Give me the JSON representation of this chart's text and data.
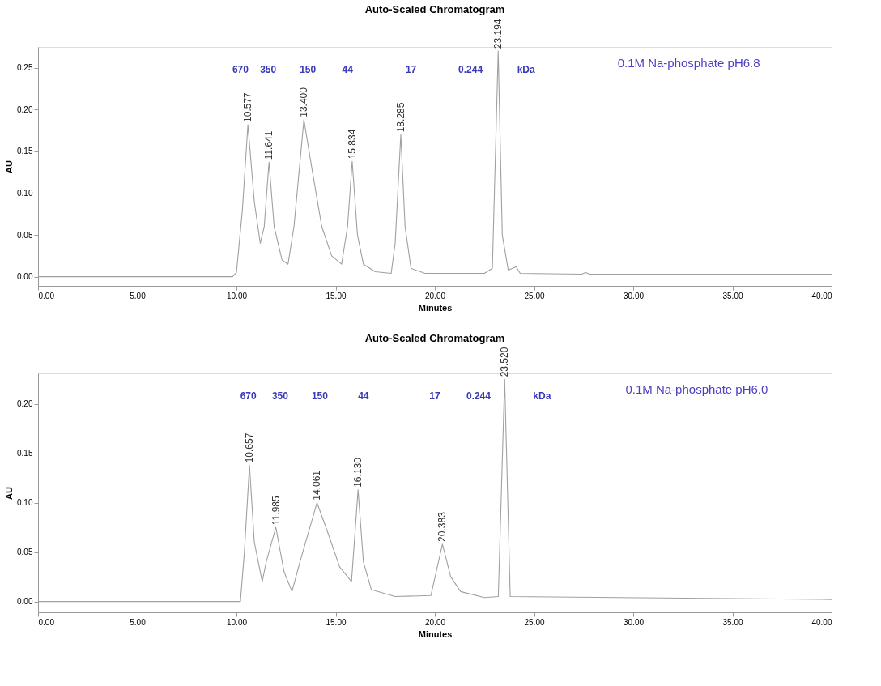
{
  "chart_data": [
    {
      "type": "line",
      "title": "Auto-Scaled Chromatogram",
      "xlabel": "Minutes",
      "ylabel": "AU",
      "xlim": [
        0,
        40
      ],
      "xticks": [
        {
          "value": 0,
          "label": "0.00"
        },
        {
          "value": 5,
          "label": "5.00"
        },
        {
          "value": 10,
          "label": "10.00"
        },
        {
          "value": 15,
          "label": "15.00"
        },
        {
          "value": 20,
          "label": "20.00"
        },
        {
          "value": 25,
          "label": "25.00"
        },
        {
          "value": 30,
          "label": "30.00"
        },
        {
          "value": 35,
          "label": "35.00"
        },
        {
          "value": 40,
          "label": "40.00"
        }
      ],
      "ylim": [
        -0.011,
        0.275
      ],
      "yticks": [
        {
          "value": 0,
          "label": "0.00"
        },
        {
          "value": 0.05,
          "label": "0.05"
        },
        {
          "value": 0.1,
          "label": "0.10"
        },
        {
          "value": 0.15,
          "label": "0.15"
        },
        {
          "value": 0.2,
          "label": "0.20"
        },
        {
          "value": 0.25,
          "label": "0.25"
        }
      ],
      "grid": false,
      "marker": "none",
      "line_style": "solid",
      "series": [
        {
          "color": "#a0a0a0",
          "x": [
            0,
            9.8,
            10.0,
            10.3,
            10.577,
            10.9,
            11.2,
            11.4,
            11.641,
            11.9,
            12.3,
            12.6,
            12.9,
            13.4,
            13.8,
            14.3,
            14.8,
            15.3,
            15.6,
            15.834,
            16.1,
            16.4,
            17.0,
            17.8,
            18.0,
            18.285,
            18.5,
            18.8,
            19.5,
            22.5,
            22.9,
            23.194,
            23.4,
            23.7,
            24.1,
            24.3,
            27.4,
            27.6,
            27.8,
            40
          ],
          "values": [
            0,
            0,
            0.005,
            0.08,
            0.182,
            0.09,
            0.04,
            0.06,
            0.137,
            0.06,
            0.02,
            0.015,
            0.06,
            0.188,
            0.13,
            0.06,
            0.025,
            0.015,
            0.06,
            0.138,
            0.05,
            0.015,
            0.006,
            0.004,
            0.04,
            0.17,
            0.06,
            0.01,
            0.004,
            0.004,
            0.01,
            0.27,
            0.05,
            0.008,
            0.012,
            0.004,
            0.003,
            0.005,
            0.003,
            0.003
          ]
        }
      ],
      "annotations": [
        {
          "text": "10.577",
          "x": 10.577,
          "y": 0.182
        },
        {
          "text": "11.641",
          "x": 11.641,
          "y": 0.137
        },
        {
          "text": "13.400",
          "x": 13.4,
          "y": 0.188
        },
        {
          "text": "15.834",
          "x": 15.834,
          "y": 0.138
        },
        {
          "text": "18.285",
          "x": 18.285,
          "y": 0.17
        },
        {
          "text": "23.194",
          "x": 23.194,
          "y": 0.27
        },
        "670",
        "350",
        "150",
        "44",
        "17",
        "0.244",
        "kDa",
        "0.1M Na-phosphate pH6.8"
      ]
    },
    {
      "type": "line",
      "title": "Auto-Scaled Chromatogram",
      "xlabel": "Minutes",
      "ylabel": "AU",
      "xlim": [
        0,
        40
      ],
      "xticks": [
        {
          "value": 0,
          "label": "0.00"
        },
        {
          "value": 5,
          "label": "5.00"
        },
        {
          "value": 10,
          "label": "10.00"
        },
        {
          "value": 15,
          "label": "15.00"
        },
        {
          "value": 20,
          "label": "20.00"
        },
        {
          "value": 25,
          "label": "25.00"
        },
        {
          "value": 30,
          "label": "30.00"
        },
        {
          "value": 35,
          "label": "35.00"
        },
        {
          "value": 40,
          "label": "40.00"
        }
      ],
      "ylim": [
        -0.011,
        0.231
      ],
      "yticks": [
        {
          "value": 0,
          "label": "0.00"
        },
        {
          "value": 0.05,
          "label": "0.05"
        },
        {
          "value": 0.1,
          "label": "0.10"
        },
        {
          "value": 0.15,
          "label": "0.15"
        },
        {
          "value": 0.2,
          "label": "0.20"
        }
      ],
      "grid": false,
      "marker": "none",
      "line_style": "solid",
      "series": [
        {
          "color": "#a0a0a0",
          "x": [
            0,
            10.2,
            10.4,
            10.657,
            10.9,
            11.3,
            11.5,
            11.985,
            12.4,
            12.8,
            13.2,
            14.061,
            14.6,
            15.2,
            15.8,
            16.13,
            16.4,
            16.8,
            18.0,
            19.8,
            20.383,
            20.8,
            21.3,
            22.5,
            23.2,
            23.52,
            23.8,
            40
          ],
          "values": [
            0,
            0,
            0.05,
            0.138,
            0.06,
            0.02,
            0.04,
            0.075,
            0.03,
            0.01,
            0.04,
            0.1,
            0.07,
            0.035,
            0.02,
            0.113,
            0.04,
            0.012,
            0.005,
            0.006,
            0.058,
            0.025,
            0.01,
            0.004,
            0.005,
            0.225,
            0.005,
            0.002
          ]
        }
      ],
      "annotations": [
        {
          "text": "10.657",
          "x": 10.657,
          "y": 0.138
        },
        {
          "text": "11.985",
          "x": 11.985,
          "y": 0.075
        },
        {
          "text": "14.061",
          "x": 14.061,
          "y": 0.1
        },
        {
          "text": "16.130",
          "x": 16.13,
          "y": 0.113
        },
        {
          "text": "20.383",
          "x": 20.383,
          "y": 0.058
        },
        {
          "text": "23.520",
          "x": 23.52,
          "y": 0.225
        },
        "670",
        "350",
        "150",
        "44",
        "17",
        "0.244",
        "kDa",
        "0.1M Na-phosphate pH6.0"
      ]
    }
  ]
}
